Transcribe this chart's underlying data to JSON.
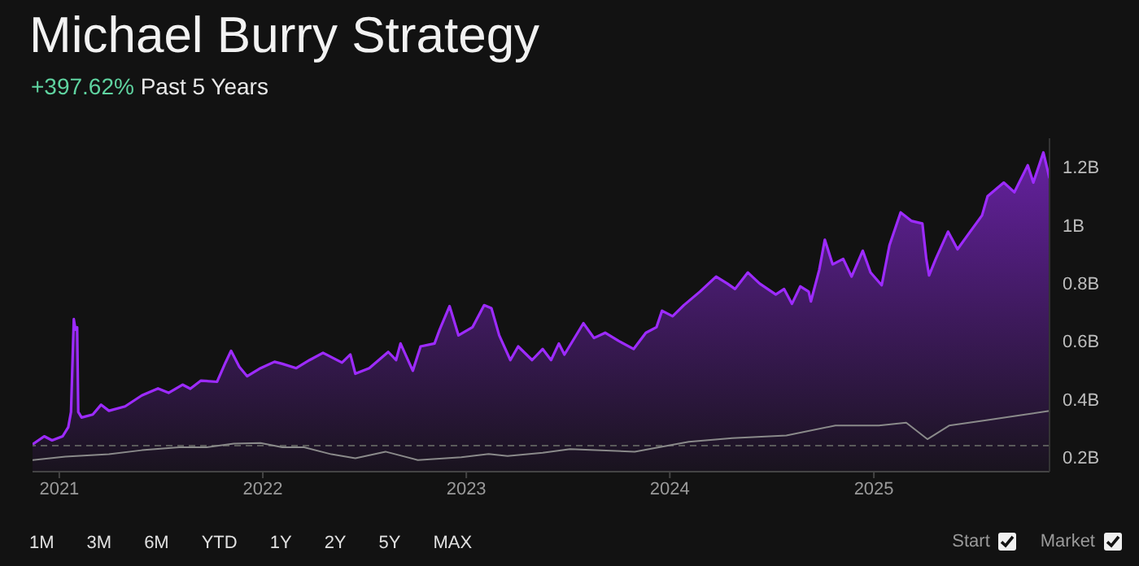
{
  "chart_data": {
    "type": "area",
    "title": "Michael Burry Strategy",
    "subtitle": "+397.62% Past 5 Years",
    "xlim": [
      "2020-11-14",
      "2025-11-12"
    ],
    "xticks": [
      "2021",
      "2022",
      "2023",
      "2024",
      "2025"
    ],
    "ylim": [
      0.15,
      1.3
    ],
    "yticks": [
      {
        "value": 0.2,
        "label": "0.2B"
      },
      {
        "value": 0.4,
        "label": "0.4B"
      },
      {
        "value": 0.6,
        "label": "0.6B"
      },
      {
        "value": 0.8,
        "label": "0.8B"
      },
      {
        "value": 1,
        "label": "1B"
      },
      {
        "value": 1.2,
        "label": "1.2B"
      }
    ],
    "grid": false,
    "legend": false,
    "marker": "none",
    "line_style": "solid",
    "ref_lines": [
      {
        "axis": "y",
        "value": 0.24,
        "color": "#5a5a5a",
        "line_style": "dashed"
      }
    ],
    "series": [
      {
        "color": "#9d2bff",
        "x": [
          "2020-11-14",
          "2020-12-05",
          "2020-12-19",
          "2021-01-07",
          "2021-01-17",
          "2021-01-22",
          "2021-01-27",
          "2021-01-30",
          "2021-02-02",
          "2021-02-04",
          "2021-02-10",
          "2021-03-02",
          "2021-03-17",
          "2021-03-31",
          "2021-04-29",
          "2021-05-29",
          "2021-06-27",
          "2021-07-16",
          "2021-08-10",
          "2021-08-24",
          "2021-09-12",
          "2021-10-11",
          "2021-10-26",
          "2021-11-05",
          "2021-11-20",
          "2021-12-04",
          "2021-12-28",
          "2022-01-22",
          "2022-02-05",
          "2022-03-02",
          "2022-03-26",
          "2022-04-19",
          "2022-05-23",
          "2022-06-07",
          "2022-06-16",
          "2022-07-11",
          "2022-08-14",
          "2022-08-28",
          "2022-09-05",
          "2022-09-27",
          "2022-10-11",
          "2022-11-05",
          "2022-11-14",
          "2022-12-02",
          "2022-12-18",
          "2023-01-12",
          "2023-02-02",
          "2023-02-15",
          "2023-03-01",
          "2023-03-21",
          "2023-04-04",
          "2023-04-29",
          "2023-05-18",
          "2023-06-02",
          "2023-06-16",
          "2023-06-26",
          "2023-07-30",
          "2023-08-18",
          "2023-09-07",
          "2023-10-01",
          "2023-10-28",
          "2023-11-19",
          "2023-12-08",
          "2023-12-18",
          "2024-01-06",
          "2024-01-26",
          "2024-02-24",
          "2024-03-24",
          "2024-04-13",
          "2024-04-27",
          "2024-05-20",
          "2024-06-10",
          "2024-07-09",
          "2024-07-24",
          "2024-08-07",
          "2024-08-22",
          "2024-09-06",
          "2024-09-10",
          "2024-09-25",
          "2024-10-05",
          "2024-10-19",
          "2024-11-07",
          "2024-11-22",
          "2024-12-12",
          "2024-12-26",
          "2025-01-15",
          "2025-01-29",
          "2025-02-18",
          "2025-03-09",
          "2025-03-29",
          "2025-04-05",
          "2025-04-10",
          "2025-04-22",
          "2025-05-14",
          "2025-05-31",
          "2025-06-19",
          "2025-07-14",
          "2025-07-24",
          "2025-08-22",
          "2025-09-10",
          "2025-10-04",
          "2025-10-14",
          "2025-11-01",
          "2025-11-12"
        ],
        "values": [
          0.244,
          0.272,
          0.258,
          0.272,
          0.303,
          0.356,
          0.676,
          0.64,
          0.648,
          0.356,
          0.337,
          0.347,
          0.381,
          0.36,
          0.375,
          0.413,
          0.437,
          0.422,
          0.45,
          0.436,
          0.464,
          0.46,
          0.526,
          0.567,
          0.511,
          0.479,
          0.507,
          0.529,
          0.522,
          0.507,
          0.535,
          0.56,
          0.526,
          0.554,
          0.488,
          0.507,
          0.563,
          0.535,
          0.592,
          0.498,
          0.582,
          0.592,
          0.639,
          0.721,
          0.62,
          0.648,
          0.724,
          0.714,
          0.62,
          0.535,
          0.582,
          0.535,
          0.573,
          0.535,
          0.592,
          0.554,
          0.662,
          0.611,
          0.629,
          0.601,
          0.573,
          0.629,
          0.648,
          0.705,
          0.686,
          0.724,
          0.771,
          0.823,
          0.799,
          0.78,
          0.837,
          0.799,
          0.761,
          0.78,
          0.729,
          0.789,
          0.771,
          0.737,
          0.846,
          0.95,
          0.865,
          0.884,
          0.823,
          0.912,
          0.837,
          0.793,
          0.931,
          1.044,
          1.015,
          1.006,
          0.884,
          0.827,
          0.884,
          0.978,
          0.917,
          0.968,
          1.034,
          1.1,
          1.147,
          1.114,
          1.207,
          1.147,
          1.251,
          1.162
        ]
      },
      {
        "type": "line",
        "color": "#8a8a8a",
        "x": [
          "2020-11-14",
          "2021-01-12",
          "2021-03-31",
          "2021-05-29",
          "2021-08-04",
          "2021-09-22",
          "2021-11-10",
          "2021-12-28",
          "2022-02-05",
          "2022-03-16",
          "2022-05-04",
          "2022-06-16",
          "2022-08-09",
          "2022-10-06",
          "2022-12-23",
          "2023-02-10",
          "2023-03-16",
          "2023-05-18",
          "2023-07-06",
          "2023-10-30",
          "2024-02-04",
          "2024-04-22",
          "2024-07-28",
          "2024-10-24",
          "2025-01-10",
          "2025-02-28",
          "2025-04-07",
          "2025-05-16",
          "2025-07-24",
          "2025-09-29",
          "2025-11-12"
        ],
        "values": [
          0.19,
          0.202,
          0.21,
          0.224,
          0.234,
          0.234,
          0.247,
          0.249,
          0.234,
          0.234,
          0.21,
          0.196,
          0.219,
          0.19,
          0.2,
          0.211,
          0.204,
          0.215,
          0.228,
          0.219,
          0.253,
          0.266,
          0.275,
          0.309,
          0.309,
          0.319,
          0.262,
          0.309,
          0.328,
          0.347,
          0.36
        ]
      }
    ],
    "annotations": [
      "1M",
      "3M",
      "6M",
      "YTD",
      "1Y",
      "2Y",
      "5Y",
      "MAX",
      "Start",
      "Market"
    ]
  }
}
